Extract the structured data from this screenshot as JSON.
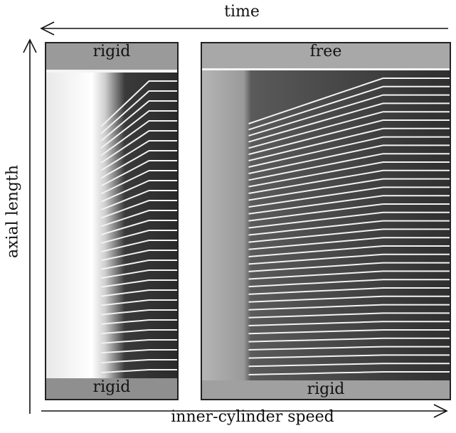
{
  "axes": {
    "top_label": "time",
    "bottom_label": "inner-cylinder speed",
    "left_label": "axial length"
  },
  "panels": [
    {
      "top_label": "rigid",
      "bottom_label": "rigid",
      "pattern_start_fraction": 0.42,
      "step_count": 5
    },
    {
      "top_label": "free",
      "bottom_label": "rigid",
      "pattern_start_fraction": 0.19,
      "step_count": 6
    }
  ],
  "colors": {
    "ink": "#111111",
    "frame": "#222222"
  }
}
